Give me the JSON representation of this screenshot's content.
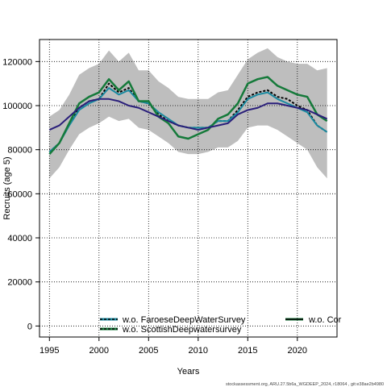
{
  "chart_data": {
    "type": "line",
    "title": "",
    "xlabel": "Years",
    "ylabel": "Recruits (age 5)",
    "xlim": [
      1994,
      2024
    ],
    "ylim": [
      -5000,
      130000
    ],
    "x_ticks": [
      1995,
      2000,
      2005,
      2010,
      2015,
      2020
    ],
    "y_ticks": [
      0,
      20000,
      40000,
      60000,
      80000,
      100000,
      120000
    ],
    "grid": true,
    "x": [
      1995,
      1996,
      1997,
      1998,
      1999,
      2000,
      2001,
      2002,
      2003,
      2004,
      2005,
      2006,
      2007,
      2008,
      2009,
      2010,
      2011,
      2012,
      2013,
      2014,
      2015,
      2016,
      2017,
      2018,
      2019,
      2020,
      2021,
      2022,
      2023
    ],
    "band": {
      "color": "#bebebe",
      "lower": [
        67000,
        72000,
        80000,
        87000,
        90000,
        92000,
        95000,
        93000,
        94000,
        90000,
        89000,
        86000,
        83000,
        79000,
        78000,
        78000,
        79000,
        81000,
        81000,
        84000,
        90000,
        91000,
        91000,
        89000,
        86000,
        83000,
        80000,
        72000,
        67000
      ],
      "upper": [
        95000,
        98000,
        105000,
        114000,
        117000,
        119000,
        125000,
        120000,
        124000,
        116000,
        116000,
        111000,
        108000,
        104000,
        103000,
        103000,
        103000,
        106000,
        107000,
        114000,
        121000,
        124000,
        126000,
        122000,
        120000,
        119000,
        119000,
        116000,
        117000
      ]
    },
    "series": [
      {
        "name": "w.o. FaroeseDeepWaterSurvey",
        "color": "#000000",
        "dash": "3,2",
        "width": 2,
        "values": [
          79000,
          83000,
          92000,
          99000,
          102000,
          103000,
          110000,
          106000,
          108000,
          102000,
          101000,
          96000,
          93000,
          91000,
          90000,
          90000,
          90000,
          93000,
          93000,
          98000,
          104000,
          106000,
          107000,
          104000,
          103000,
          100000,
          98000,
          91000,
          88000
        ]
      },
      {
        "name": "w.o. ScottishDeepwatersurvey",
        "color": "#1a8aa0",
        "dash": "",
        "width": 2,
        "values": [
          79000,
          83000,
          91000,
          98000,
          101000,
          103000,
          108000,
          105000,
          107000,
          102000,
          101000,
          97000,
          94000,
          91000,
          90000,
          90000,
          90000,
          93000,
          93000,
          97000,
          103000,
          105000,
          106000,
          103000,
          101000,
          99000,
          97000,
          91000,
          88000
        ]
      },
      {
        "name": "w.o. Cor",
        "color": "#157a3a",
        "dash": "",
        "width": 2.5,
        "values": [
          78000,
          83000,
          92000,
          101000,
          104000,
          106000,
          112000,
          107000,
          111000,
          102000,
          102000,
          95000,
          92000,
          86000,
          85000,
          87000,
          89000,
          94000,
          96000,
          101000,
          110000,
          112000,
          113000,
          109000,
          107000,
          105000,
          104000,
          96000,
          93000
        ]
      },
      {
        "name": "",
        "color": "#2a1f7a",
        "dash": "",
        "width": 2,
        "values": [
          89000,
          91000,
          95000,
          99000,
          102000,
          103000,
          103000,
          102000,
          100000,
          99000,
          97000,
          95000,
          93000,
          91000,
          90000,
          89000,
          90000,
          91000,
          92000,
          96000,
          98000,
          99000,
          101000,
          101000,
          100000,
          99000,
          98000,
          96000,
          94000
        ]
      }
    ],
    "legend": {
      "placement": "bottom",
      "entries": [
        {
          "label": "w.o. FaroeseDeepWaterSurvey",
          "color": "#000000",
          "dash": "3,2",
          "swatch_color": "#1a8aa0"
        },
        {
          "label": "w.o. ScottishDeepwatersurvey",
          "color": "#000000",
          "dash": "3,2",
          "swatch_color": "#157a3a"
        },
        {
          "label": "w.o. Cor",
          "color": "#000000",
          "dash": "",
          "swatch_color": "#157a3a"
        }
      ]
    }
  },
  "footer": "stockassessment.org, ARU.27.5b6a_WGDEEP_2024, r18064 , git:e38ae2b4980"
}
